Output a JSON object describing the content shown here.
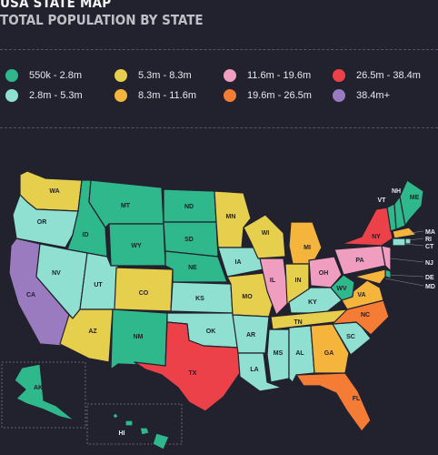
{
  "header": {
    "title": "USA STATE MAP",
    "subtitle": "TOTAL POPULATION BY STATE"
  },
  "legend": [
    {
      "label": "550k - 2.8m",
      "color": "#2fb88b"
    },
    {
      "label": "2.8m - 5.3m",
      "color": "#8fe0d0"
    },
    {
      "label": "5.3m - 8.3m",
      "color": "#e7cf4e"
    },
    {
      "label": "8.3m - 11.6m",
      "color": "#f5b53c"
    },
    {
      "label": "11.6m - 19.6m",
      "color": "#ef9ec0"
    },
    {
      "label": "19.6m - 26.5m",
      "color": "#f57c35"
    },
    {
      "label": "26.5m - 38.4m",
      "color": "#ec4148"
    },
    {
      "label": "38.4m+",
      "color": "#9b7bc0"
    }
  ],
  "states": {
    "WA": "WA",
    "OR": "OR",
    "CA": "CA",
    "ID": "ID",
    "NV": "NV",
    "MT": "MT",
    "WY": "WY",
    "UT": "UT",
    "AZ": "AZ",
    "CO": "CO",
    "NM": "NM",
    "ND": "ND",
    "SD": "SD",
    "NE": "NE",
    "KS": "KS",
    "OK": "OK",
    "TX": "TX",
    "MN": "MN",
    "IA": "IA",
    "MO": "MO",
    "AR": "AR",
    "LA": "LA",
    "WI": "WI",
    "IL": "IL",
    "MI": "MI",
    "IN": "IN",
    "OH": "OH",
    "KY": "KY",
    "TN": "TN",
    "MS": "MS",
    "AL": "AL",
    "GA": "GA",
    "FL": "FL",
    "SC": "SC",
    "NC": "NC",
    "VA": "VA",
    "WV": "WV",
    "PA": "PA",
    "NY": "NY",
    "VT": "VT",
    "NH": "NH",
    "ME": "ME",
    "MA": "MA",
    "RI": "RI",
    "CT": "CT",
    "NJ": "NJ",
    "DE": "DE",
    "MD": "MD",
    "AK": "AK",
    "HI": "HI"
  }
}
